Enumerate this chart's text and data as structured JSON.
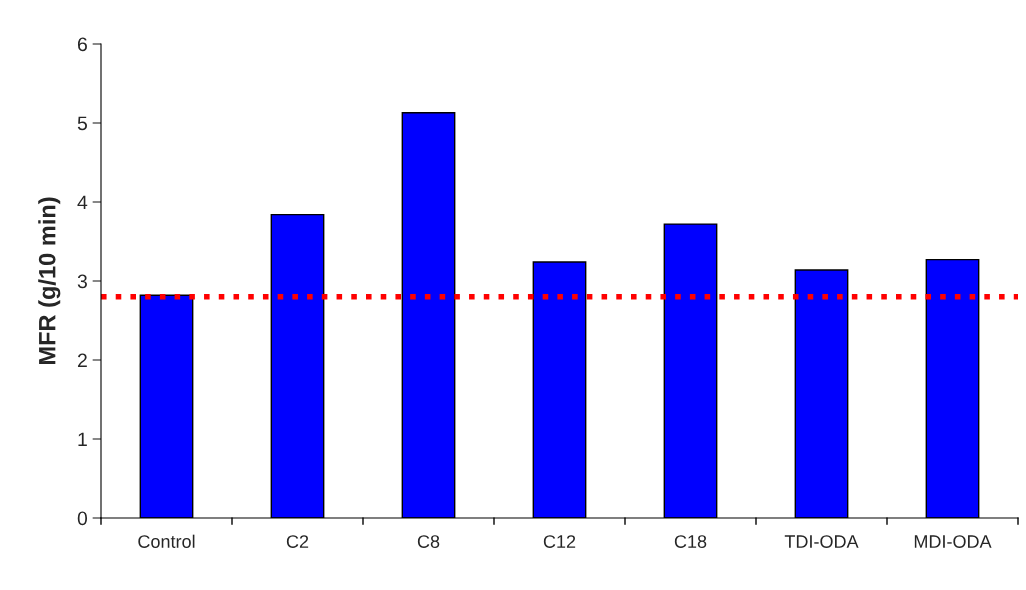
{
  "chart_data": {
    "type": "bar",
    "ylabel": "MFR (g/10 min)",
    "categories": [
      "Control",
      "C2",
      "C8",
      "C12",
      "C18",
      "TDI-ODA",
      "MDI-ODA"
    ],
    "values": [
      2.82,
      3.84,
      5.13,
      3.24,
      3.72,
      3.14,
      3.27
    ],
    "color": "#0000ff",
    "ylim": [
      0,
      6
    ],
    "yticks": [
      0,
      1,
      2,
      3,
      4,
      5,
      6
    ],
    "grid": false,
    "legend": false,
    "ref_lines": [
      {
        "axis": "y",
        "value": 2.8,
        "color": "#ff0000",
        "line_style": "dotted"
      }
    ]
  }
}
